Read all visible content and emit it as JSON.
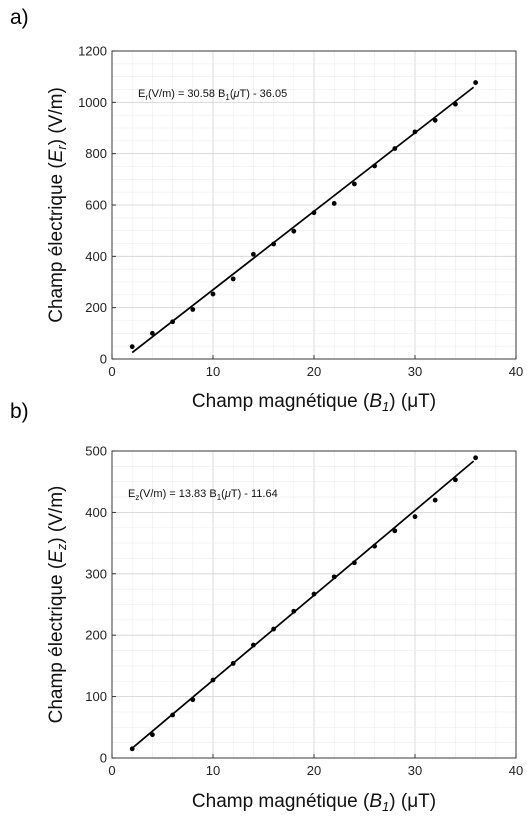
{
  "chart_data": [
    {
      "type": "scatter",
      "panel_label": "a)",
      "x": [
        2,
        4,
        6,
        8,
        10,
        12,
        14,
        16,
        18,
        20,
        22,
        24,
        26,
        28,
        30,
        32,
        34,
        36
      ],
      "y": [
        48,
        100,
        145,
        193,
        253,
        312,
        408,
        448,
        498,
        570,
        606,
        682,
        752,
        820,
        885,
        930,
        993,
        1077
      ],
      "fit": {
        "slope": 30.58,
        "intercept": -36.05,
        "x_range": [
          2,
          35.8
        ]
      },
      "equation": {
        "lhs_main": "E",
        "lhs_sub": "r",
        "mid": "(V/m) = 30.58 B",
        "b_sub": "1",
        "open": "(",
        "mu": "μ",
        "rest": "T) - 36.05"
      },
      "xlabel": {
        "prefix": "Champ magnétique (",
        "var": "B",
        "sub": "1",
        "suffix": ") (μT)"
      },
      "ylabel": {
        "prefix": "Champ électrique (",
        "var": "E",
        "sub": "r",
        "suffix": ") (V/m)"
      },
      "xlim": [
        0,
        40
      ],
      "ylim": [
        0,
        1200
      ],
      "xticks": [
        0,
        10,
        20,
        30,
        40
      ],
      "yticks": [
        0,
        200,
        400,
        600,
        800,
        1000,
        1200
      ],
      "minor_x_step": 2,
      "minor_y_step": 50,
      "grid": true,
      "legend": "none"
    },
    {
      "type": "scatter",
      "panel_label": "b)",
      "x": [
        2,
        4,
        6,
        8,
        10,
        12,
        14,
        16,
        18,
        20,
        22,
        24,
        26,
        28,
        30,
        32,
        34,
        36
      ],
      "y": [
        15,
        38,
        70,
        95,
        127,
        154,
        184,
        210,
        239,
        267,
        295,
        318,
        345,
        370,
        393,
        420,
        453,
        489
      ],
      "fit": {
        "slope": 13.83,
        "intercept": -11.64,
        "x_range": [
          2,
          35.8
        ]
      },
      "equation": {
        "lhs_main": "E",
        "lhs_sub": "z",
        "mid": "(V/m) = 13.83 B",
        "b_sub": "1",
        "open": "(",
        "mu": "μ",
        "rest": "T) - 11.64"
      },
      "xlabel": {
        "prefix": "Champ magnétique (",
        "var": "B",
        "sub": "1",
        "suffix": ") (μT)"
      },
      "ylabel": {
        "prefix": "Champ électrique (",
        "var": "E",
        "sub": "z",
        "suffix": ") (V/m)"
      },
      "xlim": [
        0,
        40
      ],
      "ylim": [
        0,
        500
      ],
      "xticks": [
        0,
        10,
        20,
        30,
        40
      ],
      "yticks": [
        0,
        100,
        200,
        300,
        400,
        500
      ],
      "minor_x_step": 2,
      "minor_y_step": 25,
      "grid": true,
      "legend": "none"
    }
  ]
}
